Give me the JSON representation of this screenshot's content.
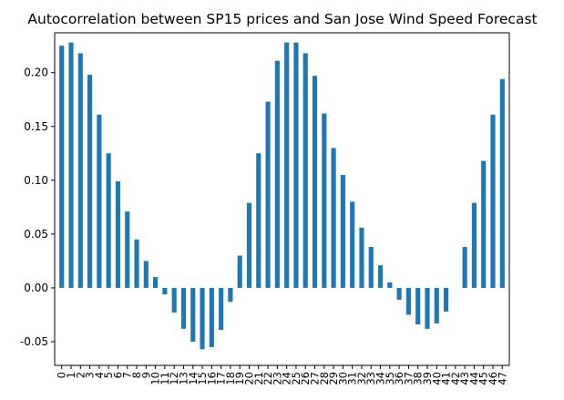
{
  "chart_data": {
    "type": "bar",
    "title": "Autocorrelation between SP15 prices and San Jose Wind Speed Forecast",
    "xlabel": "",
    "ylabel": "",
    "categories": [
      "0",
      "1",
      "2",
      "3",
      "4",
      "5",
      "6",
      "7",
      "8",
      "9",
      "10",
      "11",
      "12",
      "13",
      "14",
      "15",
      "16",
      "17",
      "18",
      "19",
      "20",
      "21",
      "22",
      "23",
      "24",
      "25",
      "26",
      "27",
      "28",
      "29",
      "30",
      "31",
      "32",
      "33",
      "34",
      "35",
      "36",
      "37",
      "38",
      "39",
      "40",
      "41",
      "42",
      "43",
      "44",
      "45",
      "46",
      "47"
    ],
    "values": [
      0.225,
      0.228,
      0.218,
      0.198,
      0.161,
      0.125,
      0.099,
      0.071,
      0.045,
      0.025,
      0.01,
      -0.006,
      -0.023,
      -0.038,
      -0.05,
      -0.057,
      -0.055,
      -0.039,
      -0.013,
      0.03,
      0.079,
      0.125,
      0.173,
      0.211,
      0.228,
      0.228,
      0.218,
      0.197,
      0.162,
      0.13,
      0.105,
      0.08,
      0.056,
      0.038,
      0.021,
      0.005,
      -0.011,
      -0.025,
      -0.034,
      -0.038,
      -0.033,
      -0.022,
      0.0,
      0.038,
      0.079,
      0.118,
      0.161,
      0.194
    ],
    "ylim": [
      -0.072,
      0.237
    ],
    "yticks": [
      "-0.05",
      "0.00",
      "0.05",
      "0.10",
      "0.15",
      "0.20"
    ],
    "grid": false,
    "legend": "none",
    "bar_color": "#1f77b4"
  }
}
